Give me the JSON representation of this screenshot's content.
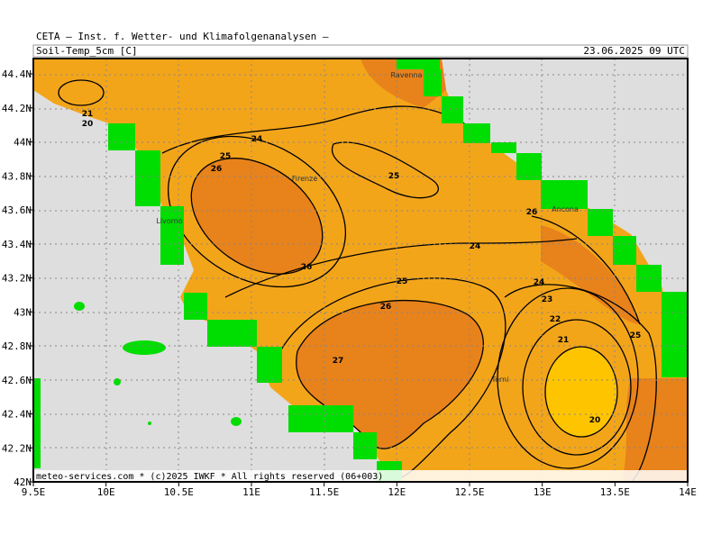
{
  "header": {
    "title": "CETA — Inst. f. Wetter- und Klimafolgenanalysen —",
    "parameter": "Soil-Temp_5cm [C]",
    "valid_time": "23.06.2025 09 UTC"
  },
  "axes": {
    "lon_labels": [
      "9.5E",
      "10E",
      "10.5E",
      "11E",
      "11.5E",
      "12E",
      "12.5E",
      "13E",
      "13.5E",
      "14E"
    ],
    "lat_labels": [
      "44.4N",
      "44.2N",
      "44N",
      "43.8N",
      "43.6N",
      "43.4N",
      "43.2N",
      "43N",
      "42.8N",
      "42.6N",
      "42.4N",
      "42.2N",
      "42N"
    ]
  },
  "cities": [
    "Ravenna",
    "Firenze",
    "Livorno",
    "Ancona",
    "Terni"
  ],
  "contour_labels": [
    "21",
    "20",
    "24",
    "25",
    "26",
    "25",
    "26",
    "24",
    "26",
    "25",
    "24",
    "23",
    "26",
    "22",
    "21",
    "25",
    "27",
    "20"
  ],
  "footer": "meteo-services.com * (c)2025 IWKF * All rights reserved (06+003)"
}
